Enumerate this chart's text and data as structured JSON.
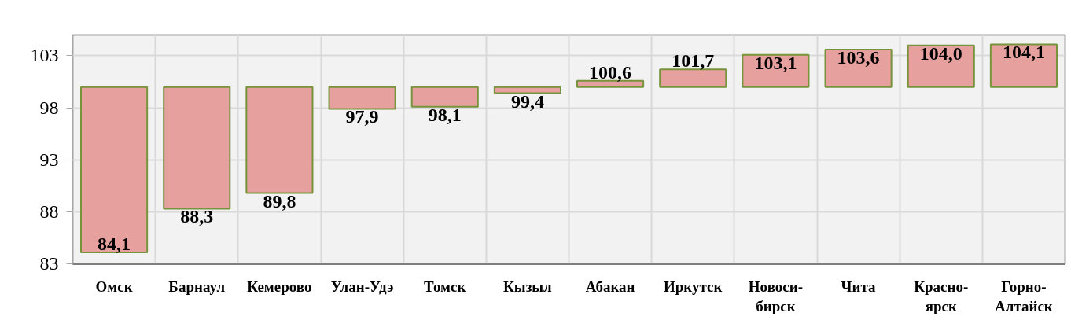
{
  "chart_data": {
    "type": "bar",
    "categories": [
      "Омск",
      "Барнаул",
      "Кемерово",
      "Улан-Удэ",
      "Томск",
      "Кызыл",
      "Абакан",
      "Иркутск",
      "Новоси-\nбирск",
      "Чита",
      "Красно-\nярск",
      "Горно-\nАлтайск"
    ],
    "base": [
      100,
      100,
      100,
      100,
      100,
      100,
      100,
      100,
      100,
      100,
      100,
      100
    ],
    "values": [
      -15.9,
      -11.7,
      -10.2,
      -2.1,
      -1.9,
      -0.6,
      0.6,
      1.7,
      3.1,
      3.6,
      4.0,
      4.1
    ],
    "value_labels": [
      "84,1",
      "88,3",
      "89,8",
      "97,9",
      "98,1",
      "99,4",
      "100,6",
      "101,7",
      "103,1",
      "103,6",
      "104,0",
      "104,1"
    ],
    "color": "#e6a09e",
    "ylim": [
      83,
      105
    ],
    "yticks": [
      83,
      88,
      93,
      98,
      103
    ],
    "grid": true
  }
}
